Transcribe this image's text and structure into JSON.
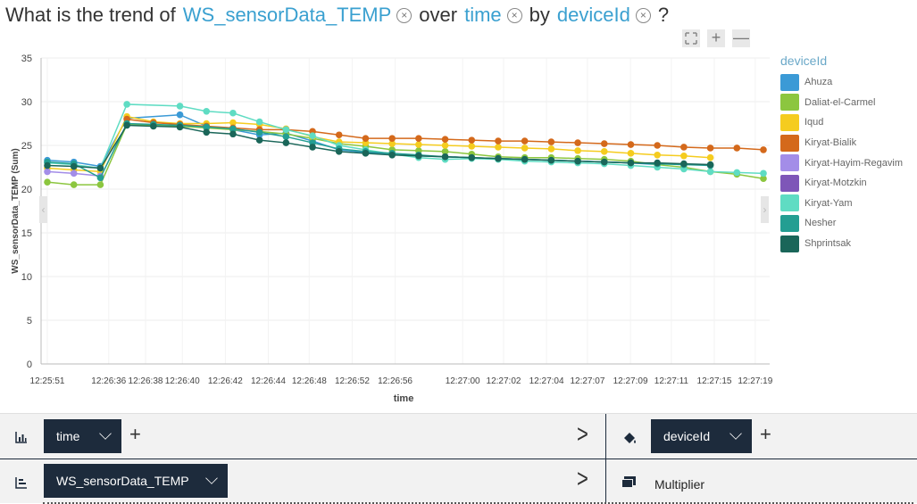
{
  "question": {
    "prefix": "What is the trend of",
    "measure": "WS_sensorData_TEMP",
    "mid1": "over",
    "dim": "time",
    "mid2": "by",
    "group": "deviceId",
    "suffix": "?",
    "remove_glyph": "×"
  },
  "zoom": {
    "expand_icon": "expand-icon",
    "plus": "+",
    "minus": "—"
  },
  "colors": {
    "accent": "#3aa0d0",
    "pill": "#1d2b3c",
    "Ahuza": "#3b9ad6",
    "Daliat-el-Carmel": "#8cc63f",
    "Iqud": "#f5cc1f",
    "Kiryat-Bialik": "#d4691b",
    "Kiryat-Hayim-Regavim": "#a38de8",
    "Kiryat-Motzkin": "#7e56b8",
    "Kiryat-Yam": "#5fdcc3",
    "Nesher": "#239e92",
    "Shprintsak": "#1a6659"
  },
  "legend": {
    "title": "deviceId",
    "items": [
      "Ahuza",
      "Daliat-el-Carmel",
      "Iqud",
      "Kiryat-Bialik",
      "Kiryat-Hayim-Regavim",
      "Kiryat-Motzkin",
      "Kiryat-Yam",
      "Nesher",
      "Shprintsak"
    ]
  },
  "chart_data": {
    "type": "line",
    "xlabel": "time",
    "ylabel": "WS_sensorData_TEMP (Sum)",
    "ylim": [
      0,
      35
    ],
    "yticks": [
      0,
      5,
      10,
      15,
      20,
      25,
      30,
      35
    ],
    "grid": true,
    "legend_position": "right",
    "x_tick_labels": [
      "12:25:51",
      "12:26:36",
      "12:26:38",
      "12:26:40",
      "12:26:42",
      "12:26:44",
      "12:26:48",
      "12:26:52",
      "12:26:56",
      "12:27:00",
      "12:27:02",
      "12:27:04",
      "12:27:07",
      "12:27:09",
      "12:27:11",
      "12:27:15",
      "12:27:19"
    ],
    "series": [
      {
        "name": "Ahuza",
        "points": [
          [
            0,
            23.3
          ],
          [
            1,
            23.1
          ],
          [
            2,
            22.6
          ],
          [
            3,
            28.1
          ],
          [
            5,
            28.5
          ],
          [
            6,
            27.2
          ],
          [
            7,
            26.8
          ],
          [
            8,
            26.2
          ],
          [
            9,
            26.4
          ],
          [
            10,
            25.5
          ],
          [
            11,
            24.5
          ],
          [
            12,
            24.2
          ],
          [
            13,
            24.0
          ],
          [
            14,
            23.8
          ],
          [
            16,
            23.6
          ],
          [
            17,
            23.5
          ],
          [
            18,
            23.4
          ],
          [
            19,
            23.3
          ],
          [
            20,
            23.2
          ],
          [
            21,
            23.1
          ],
          [
            22,
            23.0
          ],
          [
            23,
            22.8
          ]
        ]
      },
      {
        "name": "Daliat-el-Carmel",
        "points": [
          [
            0,
            20.8
          ],
          [
            1,
            20.5
          ],
          [
            2,
            20.5
          ],
          [
            3,
            27.4
          ],
          [
            4,
            27.3
          ],
          [
            5,
            27.2
          ],
          [
            6,
            27.0
          ],
          [
            7,
            26.8
          ],
          [
            8,
            26.6
          ],
          [
            9,
            26.3
          ],
          [
            10,
            25.8
          ],
          [
            11,
            25.2
          ],
          [
            12,
            24.9
          ],
          [
            13,
            24.5
          ],
          [
            14,
            24.4
          ],
          [
            15,
            24.3
          ],
          [
            16,
            24.0
          ],
          [
            17,
            23.7
          ],
          [
            18,
            23.6
          ],
          [
            19,
            23.6
          ],
          [
            20,
            23.5
          ],
          [
            21,
            23.4
          ],
          [
            22,
            23.2
          ],
          [
            23,
            22.8
          ],
          [
            24,
            22.5
          ],
          [
            25,
            22.0
          ],
          [
            26,
            21.7
          ],
          [
            27,
            21.2
          ]
        ]
      },
      {
        "name": "Iqud",
        "points": [
          [
            0,
            22.4
          ],
          [
            1,
            22.2
          ],
          [
            2,
            22.0
          ],
          [
            3,
            28.3
          ],
          [
            4,
            27.7
          ],
          [
            5,
            27.5
          ],
          [
            6,
            27.5
          ],
          [
            7,
            27.6
          ],
          [
            8,
            27.4
          ],
          [
            9,
            26.9
          ],
          [
            10,
            26.0
          ],
          [
            11,
            25.4
          ],
          [
            12,
            25.3
          ],
          [
            13,
            25.2
          ],
          [
            14,
            25.1
          ],
          [
            15,
            25.0
          ],
          [
            16,
            24.9
          ],
          [
            17,
            24.8
          ],
          [
            18,
            24.7
          ],
          [
            19,
            24.6
          ],
          [
            20,
            24.4
          ],
          [
            21,
            24.3
          ],
          [
            22,
            24.1
          ],
          [
            23,
            23.9
          ],
          [
            24,
            23.8
          ],
          [
            25,
            23.6
          ]
        ]
      },
      {
        "name": "Kiryat-Bialik",
        "points": [
          [
            3,
            28.0
          ],
          [
            4,
            27.6
          ],
          [
            5,
            27.4
          ],
          [
            6,
            27.2
          ],
          [
            7,
            27.0
          ],
          [
            8,
            26.8
          ],
          [
            9,
            26.8
          ],
          [
            10,
            26.6
          ],
          [
            11,
            26.2
          ],
          [
            12,
            25.8
          ],
          [
            13,
            25.8
          ],
          [
            14,
            25.8
          ],
          [
            15,
            25.7
          ],
          [
            16,
            25.6
          ],
          [
            17,
            25.5
          ],
          [
            18,
            25.5
          ],
          [
            19,
            25.4
          ],
          [
            20,
            25.3
          ],
          [
            21,
            25.2
          ],
          [
            22,
            25.1
          ],
          [
            23,
            25.0
          ],
          [
            24,
            24.8
          ],
          [
            25,
            24.7
          ],
          [
            26,
            24.7
          ],
          [
            27,
            24.5
          ]
        ]
      },
      {
        "name": "Kiryat-Hayim-Regavim",
        "points": [
          [
            0,
            22.0
          ],
          [
            1,
            21.8
          ],
          [
            2,
            21.5
          ]
        ]
      },
      {
        "name": "Kiryat-Yam",
        "points": [
          [
            0,
            23.0
          ],
          [
            1,
            22.8
          ],
          [
            2,
            22.4
          ],
          [
            3,
            29.7
          ],
          [
            5,
            29.5
          ],
          [
            6,
            28.9
          ],
          [
            7,
            28.7
          ],
          [
            8,
            27.7
          ],
          [
            9,
            26.8
          ],
          [
            10,
            26.1
          ],
          [
            11,
            25.0
          ],
          [
            12,
            24.5
          ],
          [
            13,
            24.0
          ],
          [
            14,
            23.6
          ],
          [
            15,
            23.4
          ],
          [
            16,
            23.5
          ],
          [
            17,
            23.4
          ],
          [
            18,
            23.2
          ],
          [
            19,
            23.1
          ],
          [
            20,
            23.0
          ],
          [
            21,
            22.9
          ],
          [
            22,
            22.7
          ],
          [
            23,
            22.5
          ],
          [
            24,
            22.3
          ],
          [
            25,
            22.0
          ],
          [
            26,
            21.9
          ],
          [
            27,
            21.8
          ]
        ]
      },
      {
        "name": "Nesher",
        "points": [
          [
            0,
            23.1
          ],
          [
            1,
            22.9
          ],
          [
            2,
            21.3
          ],
          [
            3,
            27.5
          ],
          [
            4,
            27.4
          ],
          [
            5,
            27.3
          ],
          [
            6,
            27.1
          ],
          [
            7,
            26.9
          ],
          [
            8,
            26.5
          ],
          [
            9,
            26.0
          ],
          [
            10,
            25.3
          ],
          [
            11,
            24.6
          ],
          [
            12,
            24.3
          ],
          [
            13,
            24.1
          ],
          [
            14,
            23.9
          ],
          [
            15,
            23.7
          ],
          [
            16,
            23.6
          ],
          [
            17,
            23.5
          ],
          [
            18,
            23.4
          ],
          [
            19,
            23.3
          ],
          [
            20,
            23.2
          ],
          [
            21,
            23.1
          ],
          [
            22,
            23.0
          ],
          [
            23,
            22.9
          ],
          [
            24,
            22.8
          ],
          [
            25,
            22.7
          ]
        ]
      },
      {
        "name": "Shprintsak",
        "points": [
          [
            0,
            22.7
          ],
          [
            1,
            22.6
          ],
          [
            2,
            22.4
          ],
          [
            3,
            27.3
          ],
          [
            4,
            27.2
          ],
          [
            5,
            27.1
          ],
          [
            6,
            26.5
          ],
          [
            7,
            26.3
          ],
          [
            8,
            25.6
          ],
          [
            9,
            25.3
          ],
          [
            10,
            24.8
          ],
          [
            11,
            24.3
          ],
          [
            12,
            24.1
          ],
          [
            13,
            23.9
          ],
          [
            14,
            23.8
          ],
          [
            15,
            23.7
          ],
          [
            16,
            23.6
          ],
          [
            17,
            23.5
          ],
          [
            18,
            23.4
          ],
          [
            19,
            23.3
          ],
          [
            20,
            23.2
          ],
          [
            21,
            23.1
          ],
          [
            22,
            23.0
          ],
          [
            23,
            23.0
          ],
          [
            24,
            22.9
          ],
          [
            25,
            22.8
          ]
        ]
      }
    ]
  },
  "shelf": {
    "x_field": "time",
    "y_field": "WS_sensorData_TEMP",
    "color_field": "deviceId",
    "multiplier_label": "Multiplier",
    "add_glyph": "+",
    "next_glyph": ">"
  }
}
